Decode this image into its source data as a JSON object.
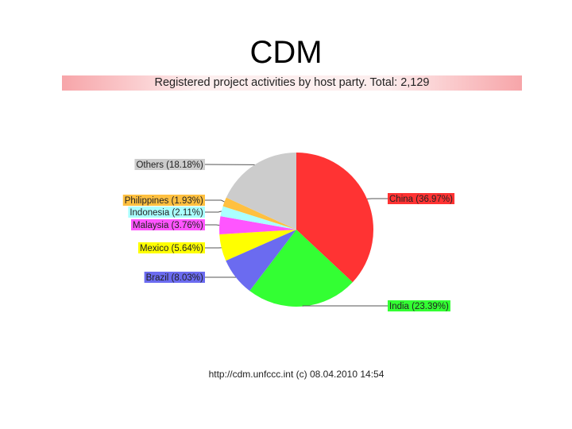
{
  "slide": {
    "title": "CDM"
  },
  "chart_data": {
    "type": "pie",
    "title": "Registered project activities by host party. Total: 2,129",
    "total": "2,129",
    "slices": [
      {
        "name": "China",
        "label": "China (36.97%)",
        "value": 36.97,
        "color": "#ff3333",
        "label_bg": "#ff3333"
      },
      {
        "name": "India",
        "label": "India (23.39%)",
        "value": 23.39,
        "color": "#33ff33",
        "label_bg": "#33ff33"
      },
      {
        "name": "Brazil",
        "label": "Brazil (8.03%)",
        "value": 8.03,
        "color": "#6b6bf0",
        "label_bg": "#6b6bf0"
      },
      {
        "name": "Mexico",
        "label": "Mexico (5.64%)",
        "value": 5.64,
        "color": "#ffff00",
        "label_bg": "#ffff00"
      },
      {
        "name": "Malaysia",
        "label": "Malaysia (3.76%)",
        "value": 3.76,
        "color": "#ff55ff",
        "label_bg": "#ff55ff"
      },
      {
        "name": "Indonesia",
        "label": "Indonesia (2.11%)",
        "value": 2.11,
        "color": "#aaffff",
        "label_bg": "#aaffff"
      },
      {
        "name": "Philippines",
        "label": "Philippines (1.93%)",
        "value": 1.93,
        "color": "#ffc040",
        "label_bg": "#ffc040"
      },
      {
        "name": "Others",
        "label": "Others (18.18%)",
        "value": 18.18,
        "color": "#cccccc",
        "label_bg": "#cccccc"
      }
    ],
    "footer": "http://cdm.unfccc.int (c) 08.04.2010 14:54"
  }
}
